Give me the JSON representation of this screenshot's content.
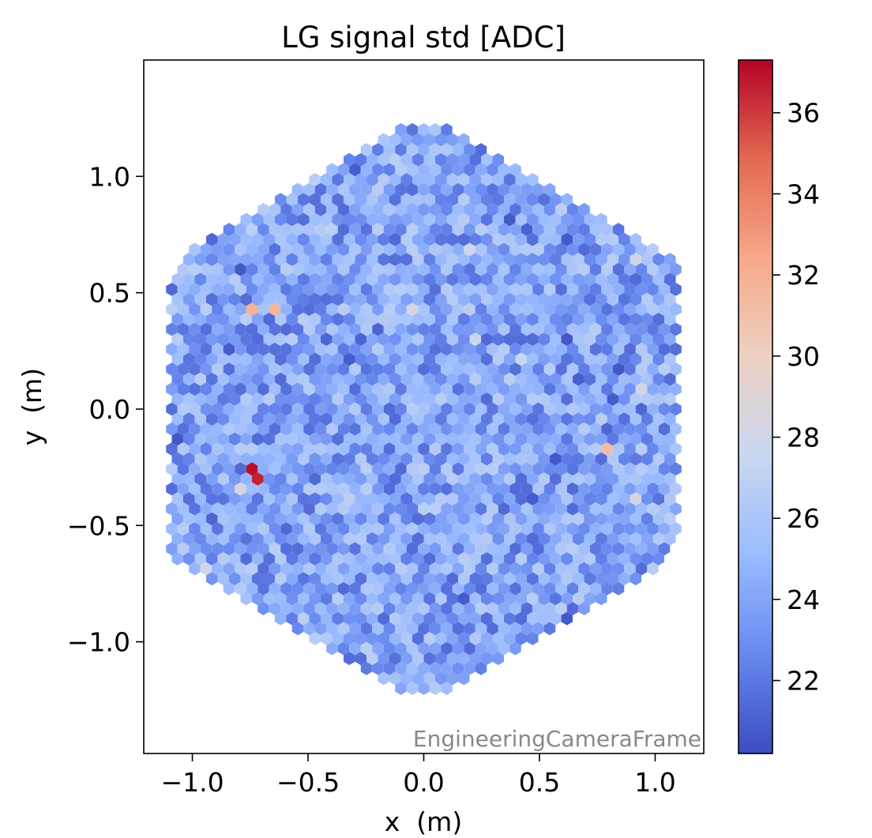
{
  "chart_data": {
    "type": "heatmap",
    "subtype": "hexagonal-camera-pixel-map",
    "title": "LG signal std [ADC]",
    "xlabel": "x  (m)",
    "ylabel": "y  (m)",
    "xlim": [
      -1.21,
      1.21
    ],
    "ylim": [
      -1.48,
      1.5
    ],
    "x_ticks": [
      -1.0,
      -0.5,
      0.0,
      0.5,
      1.0
    ],
    "x_tick_labels": [
      "−1.0",
      "−0.5",
      "0.0",
      "0.5",
      "1.0"
    ],
    "y_ticks": [
      -1.0,
      -0.5,
      0.0,
      0.5,
      1.0
    ],
    "y_tick_labels": [
      "−1.0",
      "−0.5",
      "0.0",
      "0.5",
      "1.0"
    ],
    "frame_label": "EngineeringCameraFrame",
    "grid": false,
    "colormap": "coolwarm",
    "colorbar": {
      "vmin": 20.2,
      "vmax": 37.3,
      "ticks": [
        22,
        24,
        26,
        28,
        30,
        32,
        34,
        36
      ],
      "tick_labels": [
        "22",
        "24",
        "26",
        "28",
        "30",
        "32",
        "34",
        "36"
      ],
      "colors": [
        "#3b4cc0",
        "#6788ee",
        "#9abbff",
        "#c9d7f0",
        "#edd1c2",
        "#f7a889",
        "#e26952",
        "#b40426"
      ]
    },
    "pixel_grid": {
      "shape": "hexagon",
      "camera_outline": "hexagon",
      "pixel_spacing_m": 0.0495,
      "camera_apothem_m": 1.1,
      "typical_value_range": [
        22,
        27
      ]
    },
    "highlighted_pixels": [
      {
        "x": -0.74,
        "y": -0.25,
        "value": 37.0
      },
      {
        "x": -0.72,
        "y": -0.3,
        "value": 36.6
      },
      {
        "x": -0.74,
        "y": 0.41,
        "value": 31.8
      },
      {
        "x": -0.66,
        "y": 0.44,
        "value": 31.5
      },
      {
        "x": 0.8,
        "y": -0.19,
        "value": 31.3
      },
      {
        "x": -0.04,
        "y": 0.41,
        "value": 28.2
      },
      {
        "x": 0.92,
        "y": -0.39,
        "value": 28.3
      },
      {
        "x": 0.92,
        "y": 0.66,
        "value": 28.0
      },
      {
        "x": 0.2,
        "y": 0.68,
        "value": 27.8
      },
      {
        "x": -0.95,
        "y": -0.68,
        "value": 28.0
      },
      {
        "x": 0.94,
        "y": 0.08,
        "value": 28.0
      },
      {
        "x": -0.8,
        "y": -0.33,
        "value": 28.4
      },
      {
        "x": 0.23,
        "y": 0.29,
        "value": 27.5
      },
      {
        "x": 0.4,
        "y": 0.22,
        "value": 27.4
      }
    ]
  }
}
